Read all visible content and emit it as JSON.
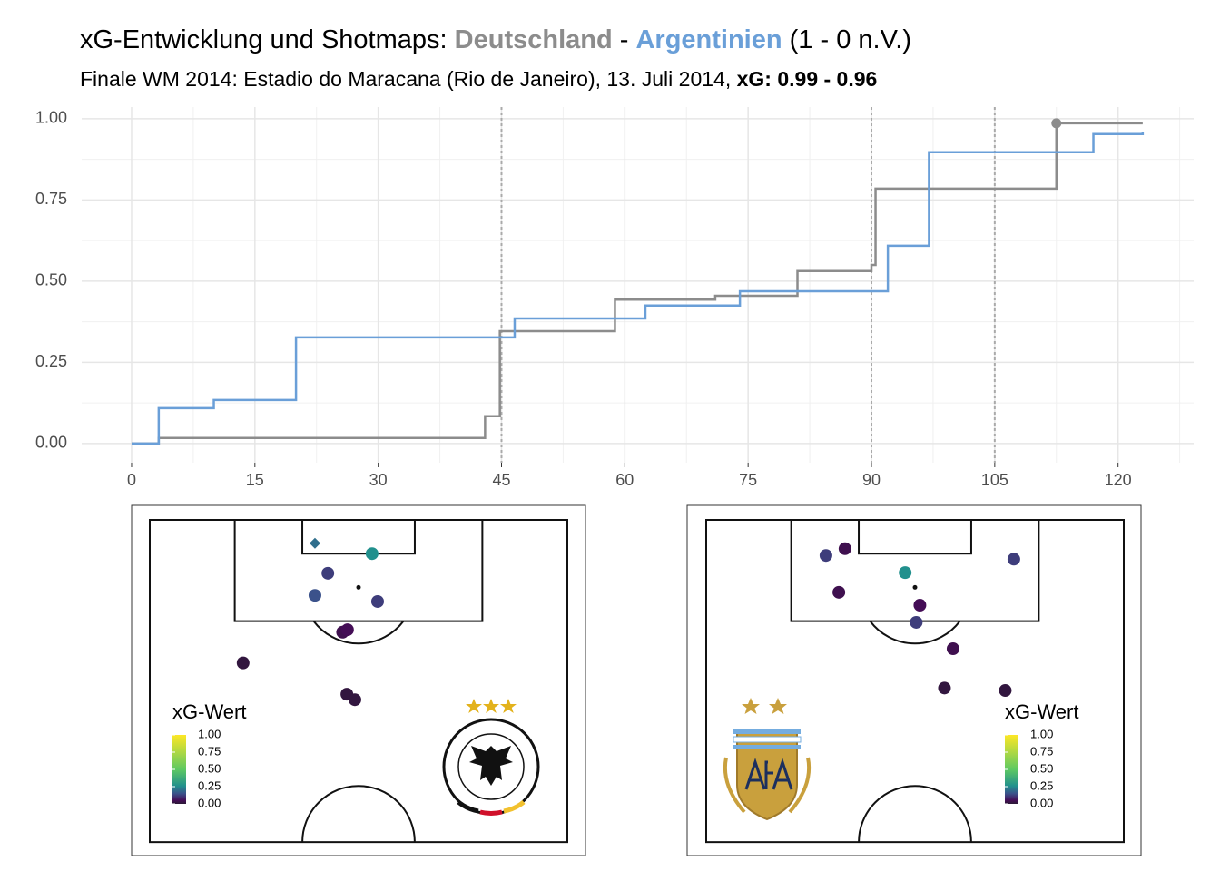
{
  "title": {
    "parts": [
      "xG-Entwicklung und Shotmaps: ",
      "Deutschland",
      " - ",
      "Argentinien",
      " (1 - 0 n.V.)"
    ],
    "colors": [
      null,
      "#8c8c8c",
      null,
      "#6a9fd8",
      null
    ]
  },
  "subtitle": {
    "parts": [
      "Finale WM 2014: Estadio do Maracana (Rio de Janeiro), 13. Juli 2014, ",
      "xG: 0.99 - 0.96"
    ],
    "bold": [
      false,
      true
    ]
  },
  "chart_data": [
    {
      "type": "step",
      "xlim": [
        -6.07,
        129.2
      ],
      "ylim": [
        -0.059,
        1.036
      ],
      "xticks": [
        0,
        15,
        30,
        45,
        60,
        75,
        90,
        105,
        120
      ],
      "yticks": [
        {
          "value": 0,
          "label": "0.00"
        },
        {
          "value": 0.25,
          "label": "0.25"
        },
        {
          "value": 0.5,
          "label": "0.50"
        },
        {
          "value": 0.75,
          "label": "0.75"
        },
        {
          "value": 1,
          "label": "1.00"
        }
      ],
      "xminor": [
        7.5,
        22.5,
        37.5,
        52.5,
        67.5,
        82.5,
        97.5,
        112.5,
        127.5
      ],
      "yminor": [
        0.125,
        0.375,
        0.625,
        0.875
      ],
      "grid": true,
      "vlines": [
        45,
        90,
        105
      ],
      "series": [
        {
          "name": "Deutschland",
          "color": "#8c8c8c",
          "x": [
            0,
            3.3,
            43,
            44.8,
            58.8,
            71,
            81,
            90,
            90.5,
            112.5,
            123
          ],
          "values": [
            0,
            0.017,
            0.084,
            0.346,
            0.443,
            0.455,
            0.531,
            0.55,
            0.785,
            0.986,
            0.986
          ]
        },
        {
          "name": "Argentinien",
          "color": "#6a9fd8",
          "x": [
            0,
            3.3,
            10,
            20,
            46.6,
            62.5,
            74,
            92,
            97,
            117,
            123
          ],
          "values": [
            0,
            0.109,
            0.134,
            0.327,
            0.385,
            0.425,
            0.469,
            0.609,
            0.897,
            0.953,
            0.96
          ]
        }
      ],
      "points": {
        "x": [
          112.5
        ],
        "values": [
          0.986
        ],
        "color": "#8c8c8c"
      }
    },
    {
      "type": "shotmap",
      "xlim": [
        0,
        68
      ],
      "ylim": [
        0,
        52.5
      ],
      "legend": "bottom-left",
      "x": [
        26.9,
        36.2,
        29.0,
        26.9,
        37.1,
        31.4,
        32.2,
        15.2,
        32.1,
        33.4
      ],
      "y": [
        3.8,
        5.5,
        8.7,
        12.3,
        13.3,
        18.3,
        17.9,
        23.3,
        28.4,
        29.3
      ],
      "values": [
        0.2,
        0.26,
        0.12,
        0.15,
        0.12,
        0.04,
        0.05,
        0.015,
        0.015,
        0.015
      ],
      "shapes": [
        "diamond",
        "circle",
        "circle",
        "circle",
        "circle",
        "circle",
        "circle",
        "circle",
        "circle",
        "circle"
      ],
      "legend_title": "xG-Wert",
      "colorbar_ticks": [
        {
          "value": 1,
          "label": "1.00"
        },
        {
          "value": 0.75,
          "label": "0.75"
        },
        {
          "value": 0.5,
          "label": "0.50"
        },
        {
          "value": 0.25,
          "label": "0.25"
        },
        {
          "value": 0,
          "label": "0.00"
        }
      ],
      "colorscale": [
        [
          0,
          "#2a1a35"
        ],
        [
          0.05,
          "#440d56"
        ],
        [
          0.15,
          "#3b528b"
        ],
        [
          0.26,
          "#21908d"
        ],
        [
          0.5,
          "#5ec962"
        ],
        [
          1,
          "#fde725"
        ]
      ]
    },
    {
      "type": "shotmap",
      "xlim": [
        0,
        68
      ],
      "ylim": [
        0,
        52.5
      ],
      "legend": "bottom-right",
      "x": [
        19.5,
        22.6,
        50.1,
        32.4,
        21.6,
        34.8,
        34.2,
        40.2,
        38.8,
        48.7
      ],
      "y": [
        5.8,
        4.7,
        6.4,
        8.6,
        11.8,
        13.9,
        16.7,
        21.0,
        27.4,
        27.8
      ],
      "values": [
        0.12,
        0.04,
        0.12,
        0.26,
        0.04,
        0.05,
        0.12,
        0.04,
        0.015,
        0.015
      ],
      "shapes": [
        "circle",
        "circle",
        "circle",
        "circle",
        "circle",
        "circle",
        "circle",
        "circle",
        "circle",
        "circle"
      ],
      "legend_title": "xG-Wert",
      "colorbar_ticks": [
        {
          "value": 1,
          "label": "1.00"
        },
        {
          "value": 0.75,
          "label": "0.75"
        },
        {
          "value": 0.5,
          "label": "0.50"
        },
        {
          "value": 0.25,
          "label": "0.25"
        },
        {
          "value": 0,
          "label": "0.00"
        }
      ],
      "colorscale": [
        [
          0,
          "#2a1a35"
        ],
        [
          0.05,
          "#440d56"
        ],
        [
          0.15,
          "#3b528b"
        ],
        [
          0.26,
          "#21908d"
        ],
        [
          0.5,
          "#5ec962"
        ],
        [
          1,
          "#fde725"
        ]
      ]
    }
  ]
}
